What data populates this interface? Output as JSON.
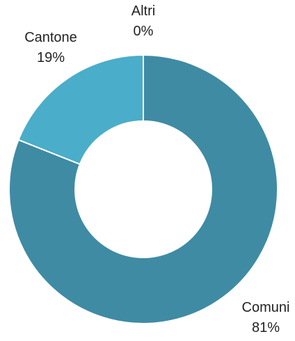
{
  "chart_data": {
    "type": "pie",
    "style": "donut",
    "slices": [
      {
        "label": "Comuni",
        "value": 81,
        "value_label": "81%",
        "color": "#3f8ba4"
      },
      {
        "label": "Cantone",
        "value": 19,
        "value_label": "19%",
        "color": "#4aadc9"
      },
      {
        "label": "Altri",
        "value": 0,
        "value_label": "0%",
        "color": "#7cc6dc"
      }
    ],
    "start": "top",
    "direction": "clockwise",
    "legend": "none",
    "separator_color": "#ffffff"
  }
}
